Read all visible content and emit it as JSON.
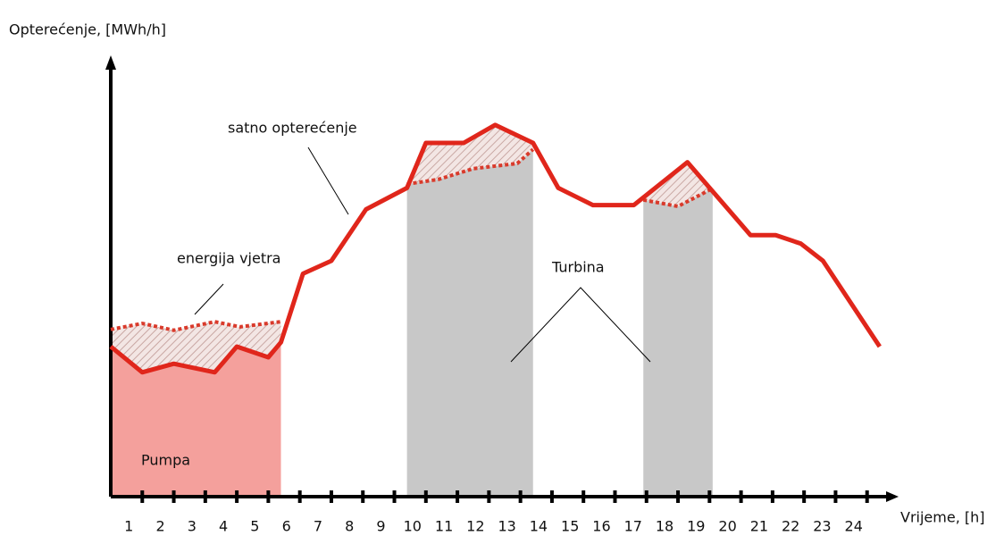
{
  "chart_data": {
    "type": "line",
    "x_label": "Vrijeme, [h]",
    "y_label": "Opterećenje, [MWh/h]",
    "xlim": [
      0,
      25
    ],
    "ylim": [
      0,
      100
    ],
    "xticks": [
      1,
      2,
      3,
      4,
      5,
      6,
      7,
      8,
      9,
      10,
      11,
      12,
      13,
      14,
      15,
      16,
      17,
      18,
      19,
      20,
      21,
      22,
      23,
      24
    ],
    "series": [
      {
        "name": "satno opterećenje",
        "color": "#e0261b",
        "style": "solid",
        "x": [
          0,
          1.0,
          2.0,
          3.3,
          4.0,
          5.0,
          5.4,
          6.1,
          7.0,
          8.1,
          9.4,
          10.0,
          11.2,
          12.2,
          13.4,
          14.2,
          15.3,
          16.6,
          18.3,
          20.3,
          21.1,
          21.9,
          22.6,
          24.4
        ],
        "values": [
          35,
          29,
          31,
          29,
          35,
          32.5,
          36,
          52,
          55,
          67,
          72,
          82.5,
          82.5,
          86.7,
          82.5,
          72,
          68,
          68,
          78,
          61,
          61,
          59,
          55,
          35
        ]
      },
      {
        "name": "energija vjetra",
        "color": "#d93a2b",
        "style": "dotted",
        "x": [
          0,
          1.0,
          2.0,
          3.3,
          4.1,
          5.4,
          null,
          9.4,
          10.4,
          11.5,
          12.9,
          13.4,
          null,
          16.9,
          18.0,
          19.1
        ],
        "values": [
          39,
          40.4,
          38.8,
          40.8,
          39.6,
          40.8,
          null,
          72.9,
          74,
          76.5,
          77.7,
          81,
          null,
          69.2,
          67.7,
          71.9
        ]
      }
    ],
    "regions": [
      {
        "label": "Pumpa",
        "color": "#f4a09c",
        "spans": [
          [
            0,
            5.4
          ]
        ]
      },
      {
        "label": "Turbina",
        "color": "#c8c8c8",
        "spans": [
          [
            9.4,
            13.4
          ],
          [
            16.9,
            19.1
          ]
        ]
      }
    ]
  }
}
